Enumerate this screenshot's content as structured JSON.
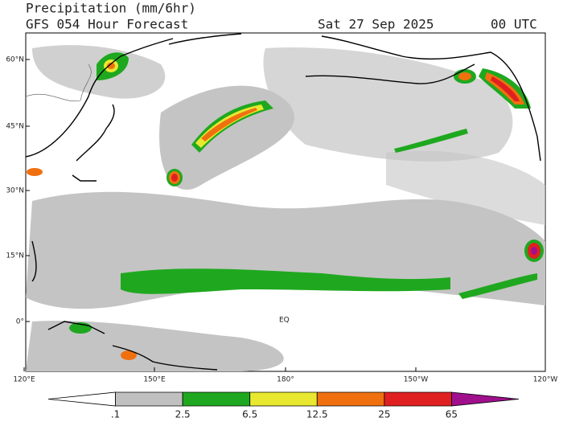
{
  "header": {
    "title": "Precipitation (mm/6hr)",
    "subtitle": "GFS 054 Hour Forecast",
    "date": "Sat 27 Sep 2025",
    "time": "00 UTC"
  },
  "map": {
    "lat_labels": [
      "60°N",
      "45°N",
      "30°N",
      "15°N",
      "0°"
    ],
    "lon_labels": [
      "120°E",
      "150°E",
      "180°",
      "150°W",
      "120°W"
    ],
    "equator_label": "EQ"
  },
  "colorbar": {
    "labels": [
      ".1",
      "2.5",
      "6.5",
      "12.5",
      "25",
      "65"
    ],
    "colors": [
      "#ffffff",
      "#c0c0c0",
      "#1fa81f",
      "#e8e830",
      "#f07010",
      "#e02020",
      "#a0108c"
    ]
  }
}
